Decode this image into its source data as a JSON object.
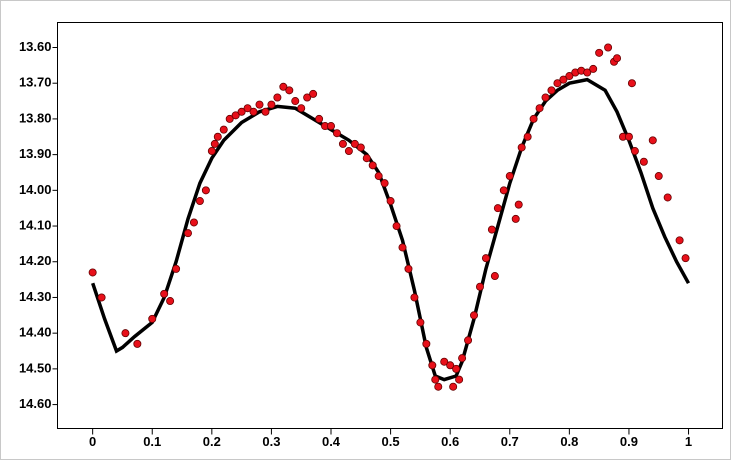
{
  "chart_data": {
    "type": "scatter",
    "xlim": [
      -0.059,
      1.057
    ],
    "ylim": [
      14.667,
      13.53
    ],
    "xticks": [
      0,
      0.1,
      0.2,
      0.3,
      0.4,
      0.5,
      0.6,
      0.7,
      0.8,
      0.9,
      1
    ],
    "yticks": [
      {
        "value": 13.6,
        "label": "13.60"
      },
      {
        "value": 13.7,
        "label": "13.70"
      },
      {
        "value": 13.8,
        "label": "13.80"
      },
      {
        "value": 13.9,
        "label": "13.90"
      },
      {
        "value": 14.0,
        "label": "14.00"
      },
      {
        "value": 14.1,
        "label": "14.10"
      },
      {
        "value": 14.2,
        "label": "14.20"
      },
      {
        "value": 14.3,
        "label": "14.30"
      },
      {
        "value": 14.4,
        "label": "14.40"
      },
      {
        "value": 14.5,
        "label": "14.50"
      },
      {
        "value": 14.6,
        "label": "14.60"
      }
    ],
    "series": [
      {
        "type": "line",
        "color": "#000000",
        "x": [
          0,
          0.02,
          0.04,
          0.05,
          0.07,
          0.1,
          0.12,
          0.14,
          0.16,
          0.18,
          0.2,
          0.22,
          0.25,
          0.28,
          0.31,
          0.34,
          0.37,
          0.4,
          0.43,
          0.46,
          0.48,
          0.5,
          0.52,
          0.54,
          0.56,
          0.575,
          0.59,
          0.61,
          0.62,
          0.64,
          0.66,
          0.68,
          0.7,
          0.72,
          0.74,
          0.76,
          0.78,
          0.8,
          0.83,
          0.86,
          0.88,
          0.9,
          0.92,
          0.94,
          0.96,
          0.98,
          1
        ],
        "values": [
          14.26,
          14.36,
          14.45,
          14.44,
          14.41,
          14.37,
          14.3,
          14.2,
          14.08,
          13.98,
          13.91,
          13.86,
          13.81,
          13.78,
          13.765,
          13.77,
          13.8,
          13.83,
          13.86,
          13.9,
          13.95,
          14.04,
          14.14,
          14.28,
          14.44,
          14.52,
          14.53,
          14.52,
          14.48,
          14.36,
          14.22,
          14.1,
          13.98,
          13.88,
          13.8,
          13.75,
          13.72,
          13.7,
          13.69,
          13.72,
          13.78,
          13.86,
          13.95,
          14.05,
          14.13,
          14.2,
          14.26
        ]
      },
      {
        "type": "scatter",
        "color": "#e8101a",
        "x": [
          0,
          0.015,
          0.055,
          0.075,
          0.1,
          0.12,
          0.13,
          0.14,
          0.16,
          0.17,
          0.18,
          0.19,
          0.2,
          0.205,
          0.21,
          0.22,
          0.23,
          0.24,
          0.25,
          0.26,
          0.27,
          0.28,
          0.29,
          0.3,
          0.31,
          0.32,
          0.33,
          0.34,
          0.35,
          0.36,
          0.37,
          0.38,
          0.39,
          0.4,
          0.41,
          0.42,
          0.43,
          0.44,
          0.45,
          0.46,
          0.47,
          0.48,
          0.49,
          0.5,
          0.51,
          0.52,
          0.53,
          0.54,
          0.55,
          0.56,
          0.57,
          0.575,
          0.58,
          0.59,
          0.6,
          0.605,
          0.61,
          0.615,
          0.62,
          0.63,
          0.64,
          0.65,
          0.66,
          0.67,
          0.675,
          0.68,
          0.69,
          0.7,
          0.71,
          0.715,
          0.72,
          0.73,
          0.74,
          0.75,
          0.76,
          0.77,
          0.78,
          0.79,
          0.8,
          0.81,
          0.82,
          0.83,
          0.84,
          0.85,
          0.865,
          0.875,
          0.88,
          0.89,
          0.9,
          0.905,
          0.91,
          0.925,
          0.94,
          0.95,
          0.965,
          0.985,
          0.995
        ],
        "values": [
          14.23,
          14.3,
          14.4,
          14.43,
          14.36,
          14.29,
          14.31,
          14.22,
          14.12,
          14.09,
          14.03,
          14.0,
          13.89,
          13.87,
          13.85,
          13.83,
          13.8,
          13.79,
          13.78,
          13.77,
          13.78,
          13.76,
          13.78,
          13.76,
          13.74,
          13.71,
          13.72,
          13.75,
          13.77,
          13.74,
          13.73,
          13.8,
          13.82,
          13.82,
          13.84,
          13.87,
          13.89,
          13.87,
          13.88,
          13.91,
          13.93,
          13.96,
          13.98,
          14.03,
          14.1,
          14.16,
          14.22,
          14.3,
          14.37,
          14.43,
          14.49,
          14.53,
          14.55,
          14.48,
          14.49,
          14.55,
          14.5,
          14.53,
          14.47,
          14.42,
          14.35,
          14.27,
          14.19,
          14.11,
          14.24,
          14.05,
          14.0,
          13.96,
          14.08,
          14.04,
          13.88,
          13.85,
          13.8,
          13.77,
          13.74,
          13.72,
          13.7,
          13.69,
          13.68,
          13.67,
          13.665,
          13.67,
          13.66,
          13.615,
          13.6,
          13.64,
          13.63,
          13.85,
          13.85,
          13.7,
          13.89,
          13.92,
          13.86,
          13.96,
          14.02,
          14.14,
          14.19
        ]
      }
    ]
  }
}
